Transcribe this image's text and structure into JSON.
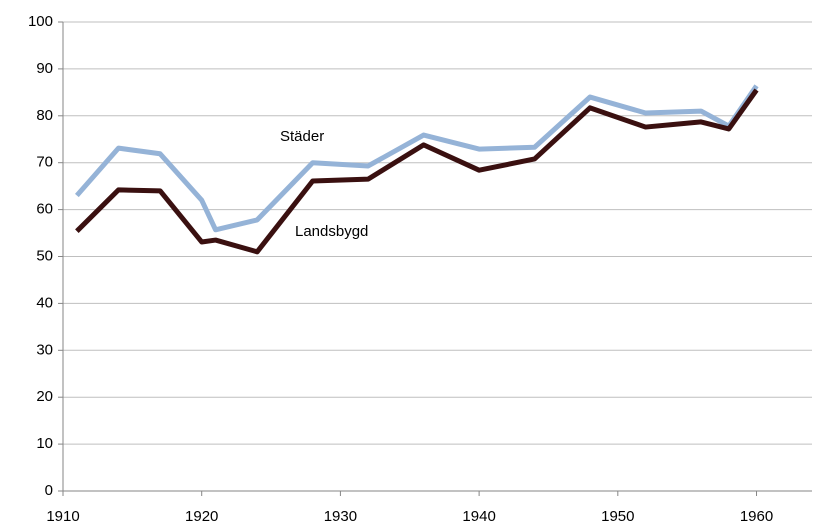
{
  "chart_data": {
    "type": "line",
    "x": [
      1911,
      1914,
      1917,
      1920,
      1921,
      1924,
      1928,
      1932,
      1936,
      1940,
      1944,
      1948,
      1952,
      1956,
      1958,
      1960
    ],
    "series": [
      {
        "name": "Städer",
        "color": "#95b3d7",
        "values": [
          63,
          73.1,
          71.9,
          62,
          55.7,
          57.8,
          70,
          69.3,
          75.9,
          72.9,
          73.3,
          84,
          80.6,
          81,
          77.8,
          86.4
        ]
      },
      {
        "name": "Landsbygd",
        "color": "#3a1010",
        "values": [
          55.4,
          64.2,
          64,
          53.1,
          53.5,
          51,
          66.1,
          66.5,
          73.8,
          68.4,
          70.8,
          81.7,
          77.6,
          78.7,
          77.2,
          85.5
        ]
      }
    ],
    "xlim": [
      1910,
      1964
    ],
    "xticks": [
      1910,
      1920,
      1930,
      1940,
      1950,
      1960
    ],
    "ylim": [
      0,
      100
    ],
    "yticks": [
      0,
      10,
      20,
      30,
      40,
      50,
      60,
      70,
      80,
      90,
      100
    ],
    "grid": true
  }
}
